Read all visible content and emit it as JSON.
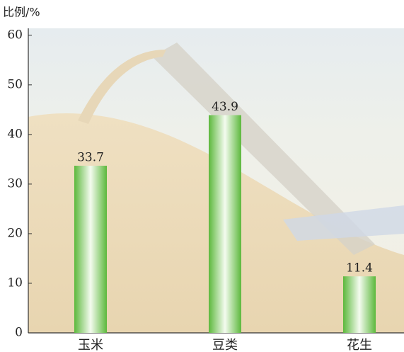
{
  "chart_data": {
    "type": "bar",
    "y_label": "比例/%",
    "categories": [
      "玉米",
      "豆类",
      "花生"
    ],
    "values": [
      33.7,
      43.9,
      11.4
    ],
    "ylim": [
      0,
      61.4
    ],
    "yticks": [
      0,
      10,
      20,
      30,
      40,
      50,
      60
    ]
  }
}
